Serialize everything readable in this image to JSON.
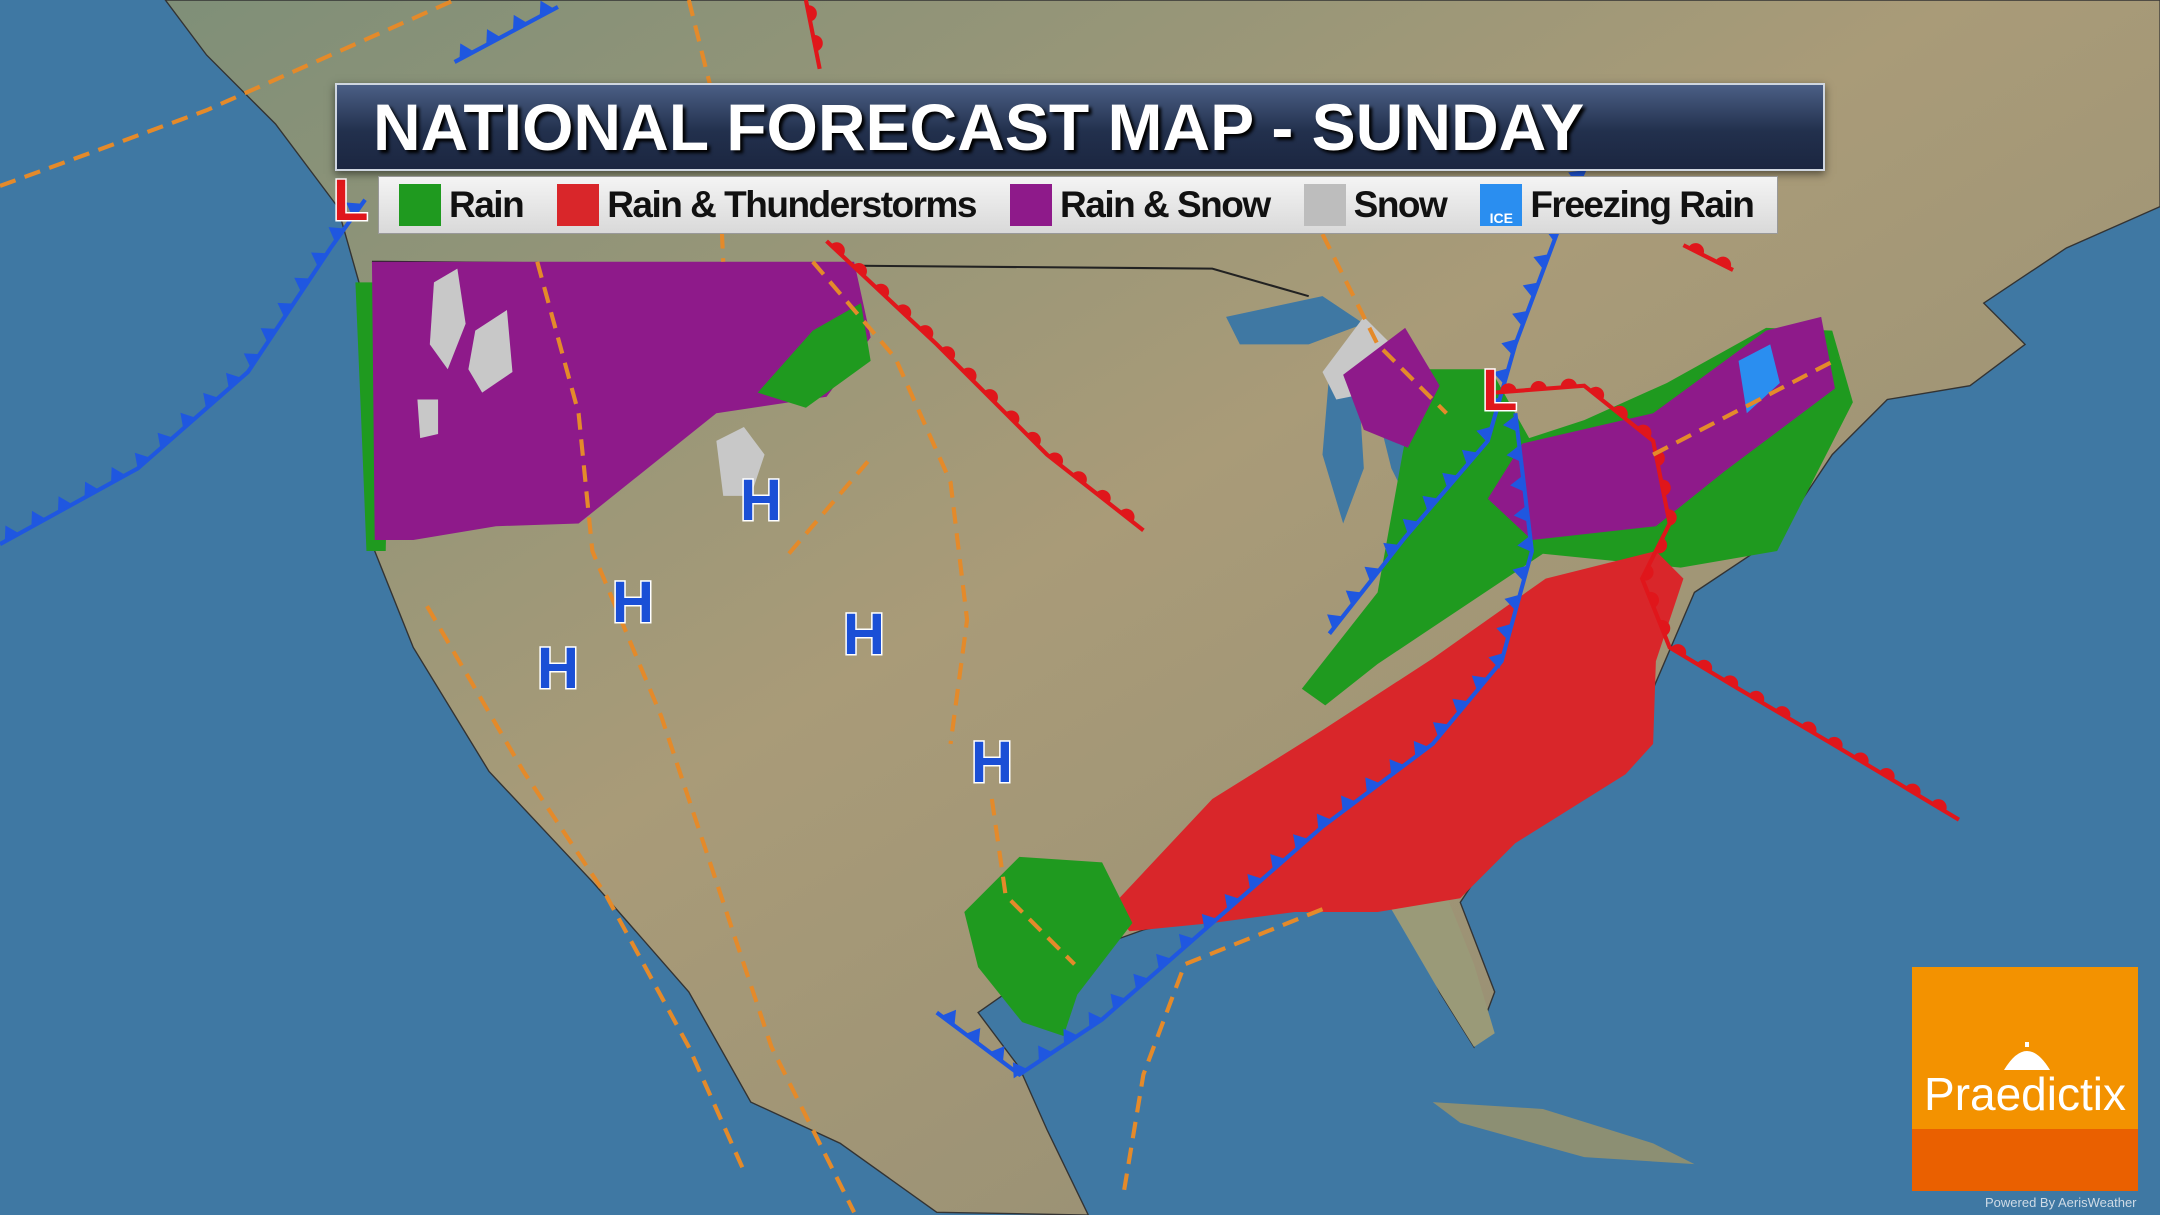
{
  "title": "NATIONAL FORECAST MAP - SUNDAY",
  "legend": [
    {
      "label": "Rain",
      "color": "#1f9a1f",
      "icon": "raindrop-icon"
    },
    {
      "label": "Rain & Thunderstorms",
      "color": "#d9262a",
      "icon": "lightning-icon"
    },
    {
      "label": "Rain & Snow",
      "color": "#8e1a8a",
      "icon": "snowflake-icon"
    },
    {
      "label": "Snow",
      "color": "#bdbdbd",
      "icon": "snowflake-icon"
    },
    {
      "label": "Freezing Rain",
      "color": "#2a8ef0",
      "icon": "ice-icon",
      "badge": "ICE"
    }
  ],
  "pressure_centers": {
    "high": "H",
    "low": "L",
    "high_color": "#1a4fd6",
    "low_color": "#e0161b"
  },
  "colors": {
    "ocean": "#3f78a3",
    "land": "#a99b78",
    "cold_front": "#1f57e0",
    "warm_front": "#e0161b",
    "trough": "#e48a2a"
  },
  "logo": {
    "name": "Praedictix",
    "powered_by": "Powered By AerisWeather"
  }
}
